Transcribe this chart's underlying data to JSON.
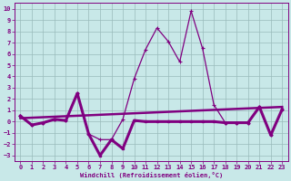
{
  "xlabel": "Windchill (Refroidissement éolien,°C)",
  "x": [
    0,
    1,
    2,
    3,
    4,
    5,
    6,
    7,
    8,
    9,
    10,
    11,
    12,
    13,
    14,
    15,
    16,
    17,
    18,
    19,
    20,
    21,
    22,
    23
  ],
  "line_wavy": [
    0.5,
    -0.3,
    -0.1,
    0.2,
    0.1,
    2.5,
    -1.1,
    -3.0,
    -1.6,
    -2.4,
    0.1,
    0.0,
    0.0,
    0.0,
    0.0,
    0.0,
    0.0,
    0.0,
    -0.1,
    -0.1,
    -0.1,
    1.3,
    -1.2,
    1.1
  ],
  "line_peak": [
    0.5,
    -0.3,
    -0.1,
    0.2,
    0.1,
    2.5,
    -1.1,
    -1.6,
    -1.6,
    0.2,
    3.8,
    6.4,
    8.3,
    7.1,
    5.3,
    9.8,
    6.5,
    1.5,
    -0.1,
    -0.1,
    -0.1,
    1.3,
    -1.2,
    1.1
  ],
  "trend_x": [
    0,
    23
  ],
  "trend_y": [
    0.3,
    1.3
  ],
  "bg_color": "#c8e8e8",
  "line_color": "#800080",
  "grid_color": "#99bbbb",
  "ylim": [
    -3.5,
    10.5
  ],
  "xlim": [
    -0.5,
    23.5
  ],
  "yticks": [
    -3,
    -2,
    -1,
    0,
    1,
    2,
    3,
    4,
    5,
    6,
    7,
    8,
    9,
    10
  ],
  "xticks": [
    0,
    1,
    2,
    3,
    4,
    5,
    6,
    7,
    8,
    9,
    10,
    11,
    12,
    13,
    14,
    15,
    16,
    17,
    18,
    19,
    20,
    21,
    22,
    23
  ]
}
